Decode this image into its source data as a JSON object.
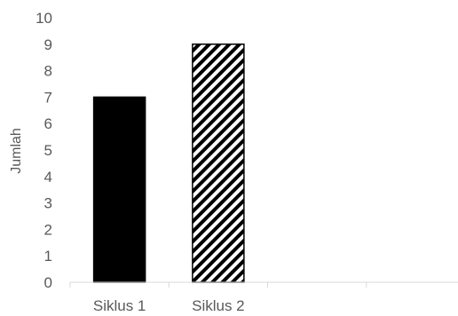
{
  "chart_data": {
    "type": "bar",
    "categories": [
      "Siklus 1",
      "Siklus 2",
      "",
      ""
    ],
    "values": [
      7,
      9,
      null,
      null
    ],
    "title": "",
    "xlabel": "",
    "ylabel": "Jumlah",
    "ylim": [
      0,
      10
    ],
    "yticks": [
      "0",
      "1",
      "2",
      "3",
      "4",
      "5",
      "6",
      "7",
      "8",
      "9",
      "10"
    ],
    "grid": false,
    "legend": "none",
    "bar_styles": [
      {
        "fill": "solid",
        "color": "#000000"
      },
      {
        "fill": "diagonal-stripes",
        "color": "#000000"
      }
    ],
    "axis_color": "#d9d9d9",
    "text_color": "#595959"
  }
}
